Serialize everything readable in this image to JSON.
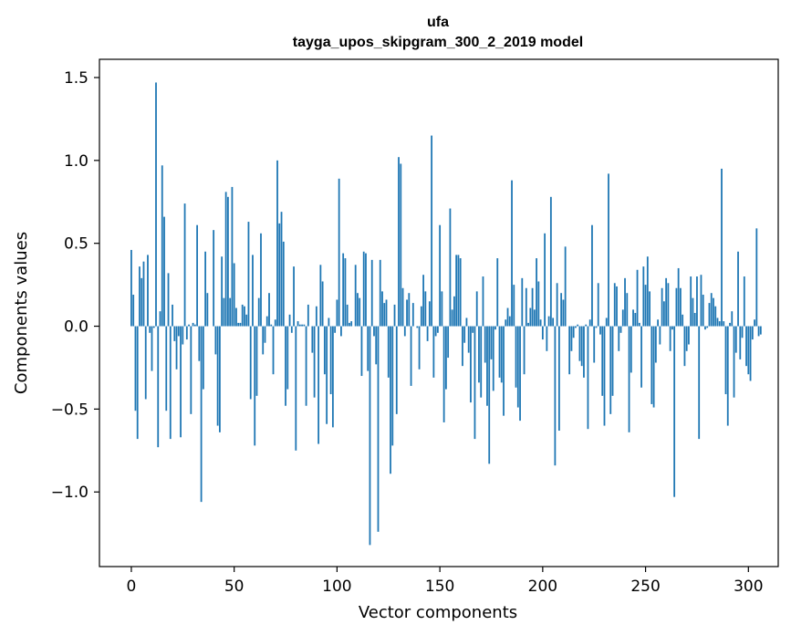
{
  "chart_data": {
    "type": "bar",
    "title": "ufa",
    "subtitle": "tayga_upos_skipgram_300_2_2019 model",
    "xlabel": "Vector components",
    "ylabel": "Components values",
    "xlim": [
      -15.5,
      314.5
    ],
    "ylim": [
      -1.45,
      1.61
    ],
    "xticks": [
      0,
      50,
      100,
      150,
      200,
      250,
      300
    ],
    "yticks": [
      -1.0,
      -0.5,
      0.0,
      0.5,
      1.0,
      1.5
    ],
    "ytick_labels": [
      "−1.0",
      "−0.5",
      "0.0",
      "0.5",
      "1.0",
      "1.5"
    ],
    "bar_color": "#1f77b4",
    "grid": false,
    "values": [
      0.46,
      0.19,
      -0.51,
      -0.68,
      0.36,
      0.29,
      0.39,
      -0.44,
      0.43,
      -0.04,
      -0.27,
      -0.01,
      1.47,
      -0.73,
      0.09,
      0.97,
      0.66,
      -0.51,
      0.32,
      -0.68,
      0.13,
      -0.09,
      -0.26,
      -0.06,
      -0.67,
      -0.11,
      0.74,
      -0.08,
      0.01,
      -0.53,
      0.02,
      0.01,
      0.61,
      -0.21,
      -1.06,
      -0.38,
      0.45,
      0.2,
      0.0,
      0.0,
      0.58,
      -0.17,
      -0.6,
      -0.64,
      0.42,
      0.17,
      0.81,
      0.78,
      0.17,
      0.84,
      0.38,
      0.11,
      0.02,
      0.02,
      0.13,
      0.12,
      0.07,
      0.63,
      -0.44,
      0.43,
      -0.72,
      -0.42,
      0.17,
      0.56,
      -0.17,
      -0.1,
      0.06,
      0.2,
      0.01,
      -0.29,
      0.04,
      1.0,
      0.62,
      0.69,
      0.51,
      -0.48,
      -0.38,
      0.07,
      -0.04,
      0.36,
      -0.75,
      0.03,
      0.01,
      0.01,
      0.01,
      -0.48,
      0.13,
      0.0,
      -0.16,
      -0.43,
      0.12,
      -0.71,
      0.37,
      0.27,
      -0.29,
      -0.59,
      0.05,
      -0.41,
      -0.61,
      -0.04,
      0.16,
      0.89,
      -0.06,
      0.44,
      0.41,
      0.13,
      0.02,
      0.03,
      0.0,
      0.37,
      0.2,
      0.17,
      -0.3,
      0.45,
      0.44,
      -0.27,
      -1.32,
      0.4,
      -0.06,
      -0.23,
      -1.24,
      0.4,
      0.21,
      0.14,
      0.16,
      -0.31,
      -0.89,
      -0.72,
      0.13,
      -0.53,
      1.02,
      0.98,
      0.23,
      -0.06,
      0.16,
      0.2,
      -0.36,
      0.14,
      0.0,
      -0.01,
      -0.26,
      0.12,
      0.31,
      0.21,
      -0.09,
      0.15,
      1.15,
      -0.31,
      -0.06,
      -0.04,
      0.61,
      0.21,
      -0.58,
      -0.38,
      -0.19,
      0.71,
      0.1,
      0.18,
      0.43,
      0.43,
      0.41,
      -0.24,
      -0.1,
      0.05,
      -0.16,
      -0.46,
      -0.04,
      -0.68,
      0.21,
      -0.34,
      -0.43,
      0.3,
      -0.22,
      -0.48,
      -0.83,
      -0.2,
      -0.39,
      -0.02,
      0.41,
      -0.31,
      -0.34,
      -0.54,
      0.04,
      0.11,
      0.06,
      0.88,
      0.25,
      -0.37,
      -0.49,
      -0.57,
      0.29,
      -0.29,
      0.23,
      0.02,
      0.11,
      0.23,
      0.1,
      0.41,
      0.27,
      0.04,
      -0.08,
      0.56,
      -0.15,
      0.06,
      0.78,
      0.05,
      -0.84,
      0.26,
      -0.63,
      0.2,
      0.16,
      0.48,
      0.0,
      -0.29,
      -0.15,
      -0.07,
      -0.01,
      0.01,
      -0.21,
      -0.24,
      -0.31,
      0.01,
      -0.62,
      0.04,
      0.61,
      -0.22,
      -0.01,
      0.26,
      -0.05,
      -0.42,
      -0.6,
      0.05,
      0.92,
      -0.53,
      -0.42,
      0.26,
      0.24,
      -0.15,
      -0.04,
      0.1,
      0.29,
      0.2,
      -0.64,
      -0.28,
      0.1,
      0.08,
      0.34,
      0.02,
      -0.37,
      0.36,
      0.25,
      0.42,
      0.21,
      -0.47,
      -0.49,
      -0.22,
      0.04,
      -0.11,
      0.23,
      0.15,
      0.29,
      0.26,
      -0.15,
      -0.02,
      -1.03,
      0.23,
      0.35,
      0.23,
      0.07,
      -0.24,
      -0.15,
      -0.11,
      0.3,
      0.17,
      0.08,
      0.3,
      -0.68,
      0.31,
      0.19,
      -0.02,
      -0.01,
      0.14,
      0.2,
      0.17,
      0.12,
      0.05,
      0.03,
      0.95,
      0.03,
      -0.41,
      -0.6,
      0.02,
      0.09,
      -0.43,
      -0.16,
      0.45,
      -0.2,
      -0.07,
      0.3,
      -0.24,
      -0.29,
      -0.33,
      -0.08,
      0.04,
      0.59,
      -0.06,
      -0.05
    ]
  }
}
